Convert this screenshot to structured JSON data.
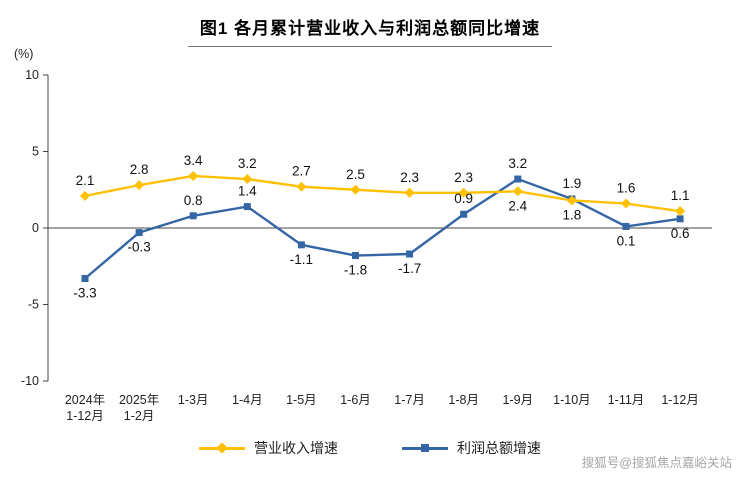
{
  "page": {
    "watermark": "搜狐号@搜狐焦点嘉峪关站"
  },
  "chart_data": {
    "type": "line",
    "title": "图1  各月累计营业收入与利润总额同比增速",
    "ylabel": "(%)",
    "ylim": [
      -10,
      10
    ],
    "yticks": [
      10,
      5,
      0,
      -5,
      -10
    ],
    "grid": false,
    "legend_position": "bottom",
    "categories": [
      "2024年\n1-12月",
      "2025年\n1-2月",
      "1-3月",
      "1-4月",
      "1-5月",
      "1-6月",
      "1-7月",
      "1-8月",
      "1-9月",
      "1-10月",
      "1-11月",
      "1-12月"
    ],
    "series": [
      {
        "name": "营业收入增速",
        "color": "#FFC000",
        "marker": "diamond",
        "values": [
          2.1,
          2.8,
          3.4,
          3.2,
          2.7,
          2.5,
          2.3,
          2.3,
          2.4,
          1.8,
          1.6,
          1.1
        ],
        "label_positions": [
          "above",
          "above",
          "above",
          "above",
          "above",
          "above",
          "above",
          "above",
          "below",
          "below",
          "above",
          "above"
        ]
      },
      {
        "name": "利润总额增速",
        "color": "#3465A4",
        "marker": "square",
        "values": [
          -3.3,
          -0.3,
          0.8,
          1.4,
          -1.1,
          -1.8,
          -1.7,
          0.9,
          3.2,
          1.9,
          0.1,
          0.6
        ],
        "label_positions": [
          "below",
          "below",
          "above",
          "above",
          "below",
          "below",
          "below",
          "above",
          "above",
          "above",
          "below",
          "below"
        ]
      }
    ]
  }
}
